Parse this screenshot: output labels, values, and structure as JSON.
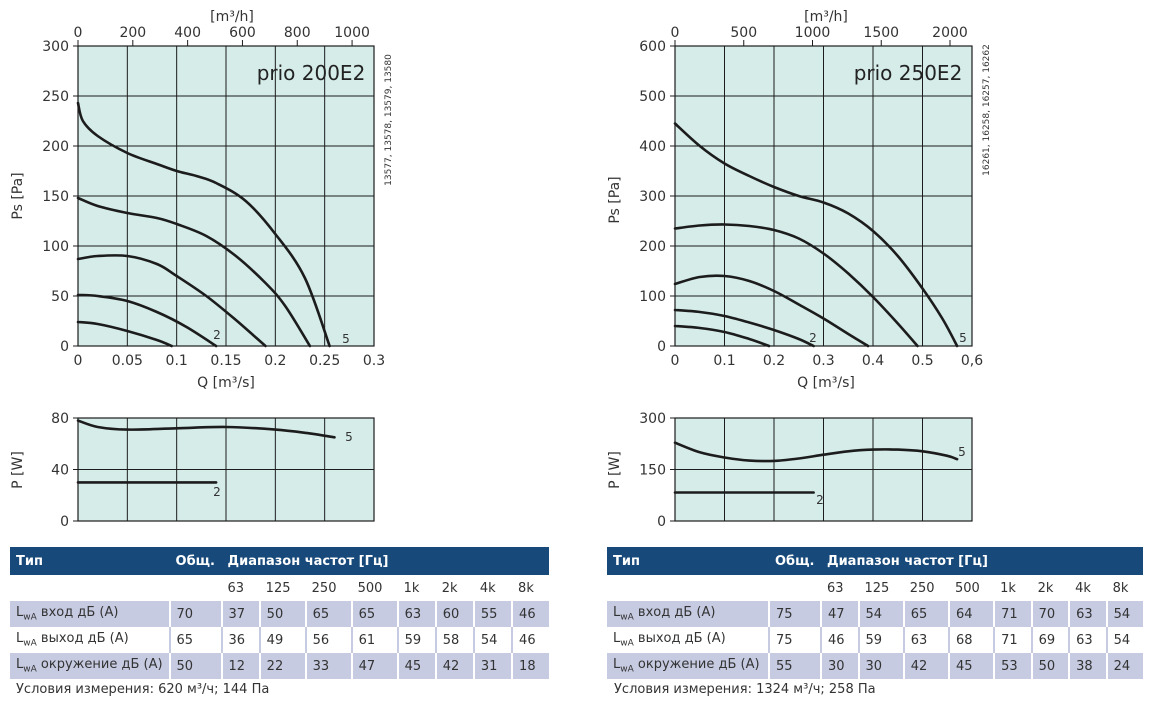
{
  "panels": [
    {
      "model": "prio 200E2",
      "side_text": "13577, 13578, 13579, 13580",
      "top_axis_label": "[m³/h]",
      "top_ticks": [
        "0",
        "200",
        "400",
        "600",
        "800",
        "1000"
      ],
      "y_label": "Ps [Pa]",
      "x_label": "Q [m³/s]",
      "x_ticks": [
        "0",
        "0.05",
        "0.1",
        "0.15",
        "0.2",
        "0.25",
        "0.3"
      ],
      "y_ticks": [
        "0",
        "50",
        "100",
        "150",
        "200",
        "250",
        "300"
      ],
      "power_y_label": "P [W]",
      "power_y_ticks": [
        "0",
        "40",
        "80"
      ],
      "curve_label_low": "2",
      "curve_label_high": "5",
      "table": {
        "head_type": "Тип",
        "head_total": "Общ.",
        "head_range": "Диапазон частот [Гц]",
        "freqs": [
          "63",
          "125",
          "250",
          "500",
          "1k",
          "2k",
          "4k",
          "8k"
        ],
        "rows": [
          {
            "label": "вход дБ (А)",
            "total": "70",
            "values": [
              "37",
              "50",
              "65",
              "65",
              "63",
              "60",
              "55",
              "46"
            ]
          },
          {
            "label": "выход дБ (А)",
            "total": "65",
            "values": [
              "36",
              "49",
              "56",
              "61",
              "59",
              "58",
              "54",
              "46"
            ]
          },
          {
            "label": "окружение дБ (А)",
            "total": "50",
            "values": [
              "12",
              "22",
              "33",
              "47",
              "45",
              "42",
              "31",
              "18"
            ]
          }
        ]
      },
      "note": "Условия измерения: 620 м³/ч; 144 Па"
    },
    {
      "model": "prio 250E2",
      "side_text": "16261, 16258, 16257, 16262",
      "top_axis_label": "[m³/h]",
      "top_ticks": [
        "0",
        "500",
        "1000",
        "1500",
        "2000"
      ],
      "y_label": "Ps [Pa]",
      "x_label": "Q [m³/s]",
      "x_ticks": [
        "0",
        "0.1",
        "0.2",
        "0.3",
        "0.4",
        "0.5",
        "0,6"
      ],
      "y_ticks": [
        "0",
        "100",
        "200",
        "300",
        "400",
        "500",
        "600"
      ],
      "power_y_label": "P [W]",
      "power_y_ticks": [
        "0",
        "150",
        "300"
      ],
      "curve_label_low": "2",
      "curve_label_high": "5",
      "table": {
        "head_type": "Тип",
        "head_total": "Общ.",
        "head_range": "Диапазон частот [Гц]",
        "freqs": [
          "63",
          "125",
          "250",
          "500",
          "1k",
          "2k",
          "4k",
          "8k"
        ],
        "rows": [
          {
            "label": "вход дБ (А)",
            "total": "75",
            "values": [
              "47",
              "54",
              "65",
              "64",
              "71",
              "70",
              "63",
              "54"
            ]
          },
          {
            "label": "выход дБ (А)",
            "total": "75",
            "values": [
              "46",
              "59",
              "63",
              "68",
              "71",
              "69",
              "63",
              "54"
            ]
          },
          {
            "label": "окружение дБ (А)",
            "total": "55",
            "values": [
              "30",
              "30",
              "42",
              "45",
              "53",
              "50",
              "38",
              "24"
            ]
          }
        ]
      },
      "note": "Условия измерения: 1324 м³/ч; 258 Па"
    }
  ],
  "lwa_prefix": "L",
  "lwa_sub": "wA",
  "colors": {
    "plot_bg": "#d5ece9",
    "curve": "#1c1c1c",
    "grid": "#1c1c1c",
    "header_bg": "#17497a",
    "row_shade": "#c6cbe2"
  },
  "chart_data": [
    {
      "type": "line",
      "title": "prio 200E2",
      "xlabel": "Q [m³/s]",
      "ylabel": "Ps [Pa]",
      "xlim": [
        0,
        0.3
      ],
      "ylim": [
        0,
        300
      ],
      "grid": true,
      "series": [
        {
          "name": "",
          "x": [
            0,
            0.02,
            0.05,
            0.08,
            0.095
          ],
          "y": [
            24,
            22,
            15,
            6,
            0
          ]
        },
        {
          "name": "2",
          "x": [
            0,
            0.02,
            0.05,
            0.08,
            0.11,
            0.14
          ],
          "y": [
            51,
            50,
            45,
            34,
            19,
            0
          ]
        },
        {
          "name": "",
          "x": [
            0,
            0.02,
            0.05,
            0.08,
            0.1,
            0.13,
            0.16,
            0.19
          ],
          "y": [
            87,
            90,
            90,
            82,
            70,
            50,
            26,
            0
          ]
        },
        {
          "name": "",
          "x": [
            0,
            0.02,
            0.05,
            0.08,
            0.1,
            0.13,
            0.16,
            0.19,
            0.21,
            0.235
          ],
          "y": [
            148,
            140,
            133,
            128,
            122,
            110,
            90,
            63,
            40,
            0
          ]
        },
        {
          "name": "5",
          "x": [
            0,
            0.005,
            0.02,
            0.05,
            0.08,
            0.1,
            0.12,
            0.14,
            0.17,
            0.2,
            0.23,
            0.255
          ],
          "y": [
            243,
            225,
            210,
            193,
            182,
            175,
            170,
            163,
            145,
            112,
            68,
            0
          ]
        }
      ]
    },
    {
      "type": "line",
      "title": "prio 200E2",
      "xlabel": "Q [m³/s]",
      "ylabel": "P [W]",
      "xlim": [
        0,
        0.3
      ],
      "ylim": [
        0,
        80
      ],
      "grid": true,
      "series": [
        {
          "name": "2",
          "x": [
            0,
            0.05,
            0.1,
            0.14
          ],
          "y": [
            30,
            30,
            30,
            30
          ]
        },
        {
          "name": "5",
          "x": [
            0,
            0.02,
            0.05,
            0.1,
            0.15,
            0.2,
            0.235,
            0.26
          ],
          "y": [
            78,
            73,
            71,
            72,
            73,
            71,
            68,
            65
          ]
        }
      ]
    },
    {
      "type": "line",
      "title": "prio 250E2",
      "xlabel": "Q [m³/s]",
      "ylabel": "Ps [Pa]",
      "xlim": [
        0,
        0.6
      ],
      "ylim": [
        0,
        600
      ],
      "grid": true,
      "series": [
        {
          "name": "",
          "x": [
            0,
            0.05,
            0.1,
            0.15,
            0.19
          ],
          "y": [
            40,
            36,
            28,
            14,
            0
          ]
        },
        {
          "name": "2",
          "x": [
            0,
            0.05,
            0.1,
            0.15,
            0.2,
            0.25,
            0.28
          ],
          "y": [
            72,
            68,
            60,
            47,
            32,
            14,
            0
          ]
        },
        {
          "name": "",
          "x": [
            0,
            0.05,
            0.1,
            0.15,
            0.2,
            0.25,
            0.3,
            0.35,
            0.39
          ],
          "y": [
            124,
            138,
            140,
            130,
            110,
            83,
            55,
            24,
            0
          ]
        },
        {
          "name": "",
          "x": [
            0,
            0.05,
            0.1,
            0.15,
            0.2,
            0.25,
            0.3,
            0.35,
            0.4,
            0.45,
            0.49
          ],
          "y": [
            235,
            241,
            243,
            240,
            232,
            215,
            185,
            145,
            98,
            45,
            0
          ]
        },
        {
          "name": "5",
          "x": [
            0,
            0.05,
            0.1,
            0.15,
            0.2,
            0.25,
            0.3,
            0.35,
            0.4,
            0.45,
            0.5,
            0.54,
            0.57
          ],
          "y": [
            445,
            400,
            365,
            340,
            318,
            300,
            287,
            265,
            230,
            180,
            115,
            55,
            0
          ]
        }
      ]
    },
    {
      "type": "line",
      "title": "prio 250E2",
      "xlabel": "Q [m³/s]",
      "ylabel": "P [W]",
      "xlim": [
        0,
        0.6
      ],
      "ylim": [
        0,
        300
      ],
      "grid": true,
      "series": [
        {
          "name": "2",
          "x": [
            0,
            0.1,
            0.2,
            0.28
          ],
          "y": [
            83,
            83,
            83,
            83
          ]
        },
        {
          "name": "5",
          "x": [
            0,
            0.05,
            0.1,
            0.15,
            0.2,
            0.25,
            0.3,
            0.35,
            0.4,
            0.45,
            0.5,
            0.55,
            0.57
          ],
          "y": [
            228,
            200,
            185,
            176,
            175,
            182,
            193,
            203,
            208,
            208,
            203,
            190,
            180
          ]
        }
      ]
    }
  ]
}
